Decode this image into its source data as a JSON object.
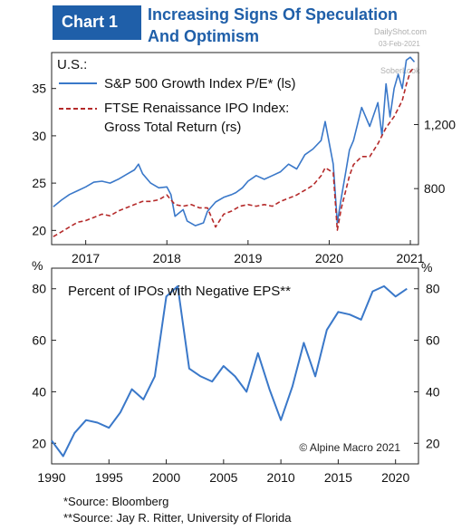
{
  "header": {
    "badge": "Chart 1",
    "title_line1": "Increasing Signs Of Speculation",
    "title_line2": "And Optimism"
  },
  "watermarks": {
    "dailyshot": "DailyShot.com",
    "date": "03-Feb-2021",
    "soberlook": "SoberLook"
  },
  "chart_data": [
    {
      "type": "line",
      "title": "U.S.:",
      "x_ticks": [
        "2017",
        "2018",
        "2019",
        "2020",
        "2021"
      ],
      "xlim": [
        2016.58,
        2021.1
      ],
      "left_axis": {
        "ticks": [
          20,
          25,
          30,
          35
        ],
        "ylim": [
          18.5,
          38.8
        ]
      },
      "right_axis": {
        "ticks": [
          "800",
          "1,200"
        ],
        "tick_values": [
          800,
          1200
        ],
        "ylim": [
          450,
          1650
        ]
      },
      "grid": false,
      "legend_position": "top-left",
      "series": [
        {
          "name": "S&P 500 Growth Index P/E* (ls)",
          "axis": "left",
          "color": "#3a78c9",
          "style": "solid",
          "x": [
            2016.6,
            2016.7,
            2016.8,
            2016.9,
            2017.0,
            2017.1,
            2017.2,
            2017.3,
            2017.4,
            2017.5,
            2017.6,
            2017.65,
            2017.7,
            2017.8,
            2017.9,
            2018.0,
            2018.05,
            2018.1,
            2018.2,
            2018.25,
            2018.35,
            2018.45,
            2018.5,
            2018.6,
            2018.7,
            2018.8,
            2018.85,
            2018.93,
            2019.0,
            2019.1,
            2019.2,
            2019.3,
            2019.4,
            2019.5,
            2019.6,
            2019.7,
            2019.8,
            2019.9,
            2019.95,
            2020.05,
            2020.1,
            2020.15,
            2020.2,
            2020.25,
            2020.3,
            2020.4,
            2020.5,
            2020.6,
            2020.65,
            2020.7,
            2020.75,
            2020.8,
            2020.85,
            2020.9,
            2020.95,
            2021.0,
            2021.05
          ],
          "values": [
            22.5,
            23.2,
            23.8,
            24.2,
            24.6,
            25.1,
            25.2,
            25.0,
            25.4,
            25.9,
            26.4,
            27.0,
            26.0,
            25.0,
            24.5,
            24.6,
            23.8,
            21.5,
            22.2,
            21.0,
            20.5,
            20.8,
            22.0,
            23.0,
            23.5,
            23.8,
            24.0,
            24.5,
            25.2,
            25.8,
            25.4,
            25.8,
            26.2,
            27.0,
            26.5,
            28.0,
            28.6,
            29.5,
            31.5,
            27.0,
            20.8,
            23.5,
            26.0,
            28.5,
            29.5,
            33.0,
            31.0,
            33.5,
            30.0,
            35.5,
            32.0,
            35.0,
            36.5,
            35.0,
            38.0,
            38.3,
            37.8
          ]
        },
        {
          "name": "FTSE Renaissance IPO Index: Gross Total Return (rs)",
          "axis": "right",
          "color": "#b52a2a",
          "style": "dashed",
          "x": [
            2016.6,
            2016.7,
            2016.8,
            2016.9,
            2017.0,
            2017.1,
            2017.2,
            2017.3,
            2017.4,
            2017.5,
            2017.6,
            2017.7,
            2017.8,
            2017.9,
            2018.0,
            2018.1,
            2018.2,
            2018.3,
            2018.4,
            2018.5,
            2018.6,
            2018.7,
            2018.8,
            2018.9,
            2019.0,
            2019.1,
            2019.2,
            2019.3,
            2019.4,
            2019.5,
            2019.6,
            2019.7,
            2019.8,
            2019.9,
            2019.95,
            2020.05,
            2020.1,
            2020.15,
            2020.2,
            2020.25,
            2020.3,
            2020.4,
            2020.5,
            2020.6,
            2020.7,
            2020.8,
            2020.9,
            2020.95,
            2021.0,
            2021.05
          ],
          "values": [
            500,
            530,
            560,
            590,
            600,
            620,
            640,
            630,
            660,
            680,
            700,
            720,
            720,
            730,
            760,
            700,
            690,
            700,
            680,
            680,
            560,
            640,
            660,
            690,
            700,
            690,
            700,
            690,
            720,
            740,
            760,
            790,
            820,
            880,
            930,
            900,
            540,
            680,
            780,
            880,
            950,
            1000,
            1000,
            1080,
            1180,
            1250,
            1350,
            1450,
            1530,
            1560
          ]
        }
      ]
    },
    {
      "type": "line",
      "title": "Percent of IPOs with Negative EPS**",
      "y_unit_label": "%",
      "x_ticks": [
        "1990",
        "1995",
        "2000",
        "2005",
        "2010",
        "2015",
        "2020"
      ],
      "xlim": [
        1990,
        2022
      ],
      "ylim": [
        12,
        88
      ],
      "y_ticks": [
        20,
        40,
        60,
        80
      ],
      "grid": false,
      "annotation": "© Alpine Macro 2021",
      "series": [
        {
          "color": "#3a78c9",
          "style": "solid",
          "x": [
            1990,
            1991,
            1992,
            1993,
            1994,
            1995,
            1996,
            1997,
            1998,
            1999,
            2000,
            2001,
            2002,
            2003,
            2004,
            2005,
            2006,
            2007,
            2008,
            2009,
            2010,
            2011,
            2012,
            2013,
            2014,
            2015,
            2016,
            2017,
            2018,
            2019,
            2020,
            2021
          ],
          "values": [
            21,
            15,
            24,
            29,
            28,
            26,
            32,
            41,
            37,
            46,
            77,
            81,
            49,
            46,
            44,
            50,
            46,
            40,
            55,
            41,
            29,
            42,
            59,
            46,
            64,
            71,
            70,
            68,
            79,
            81,
            77,
            80
          ]
        }
      ]
    }
  ],
  "footnotes": [
    "*Source: Bloomberg",
    "**Source: Jay R. Ritter, University of Florida"
  ]
}
